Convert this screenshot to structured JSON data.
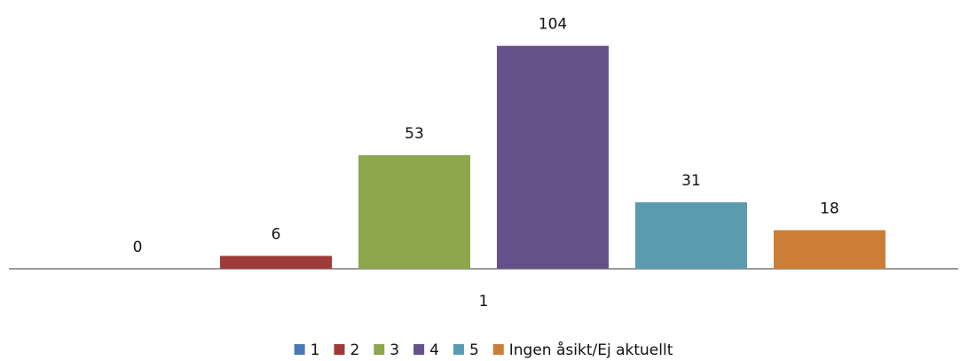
{
  "chart_data": {
    "type": "bar",
    "categories": [
      "1"
    ],
    "series": [
      {
        "name": "1",
        "color": "#4a78b5",
        "values": [
          0
        ]
      },
      {
        "name": "2",
        "color": "#9e3b38",
        "values": [
          6
        ]
      },
      {
        "name": "3",
        "color": "#8ea64c",
        "values": [
          53
        ]
      },
      {
        "name": "4",
        "color": "#65518a",
        "values": [
          104
        ]
      },
      {
        "name": "5",
        "color": "#5b9bb0",
        "values": [
          31
        ]
      },
      {
        "name": "Ingen åsikt/Ej aktuellt",
        "color": "#cc7e38",
        "values": [
          18
        ]
      }
    ],
    "ylim": [
      0,
      120
    ],
    "legend": "bottom"
  }
}
